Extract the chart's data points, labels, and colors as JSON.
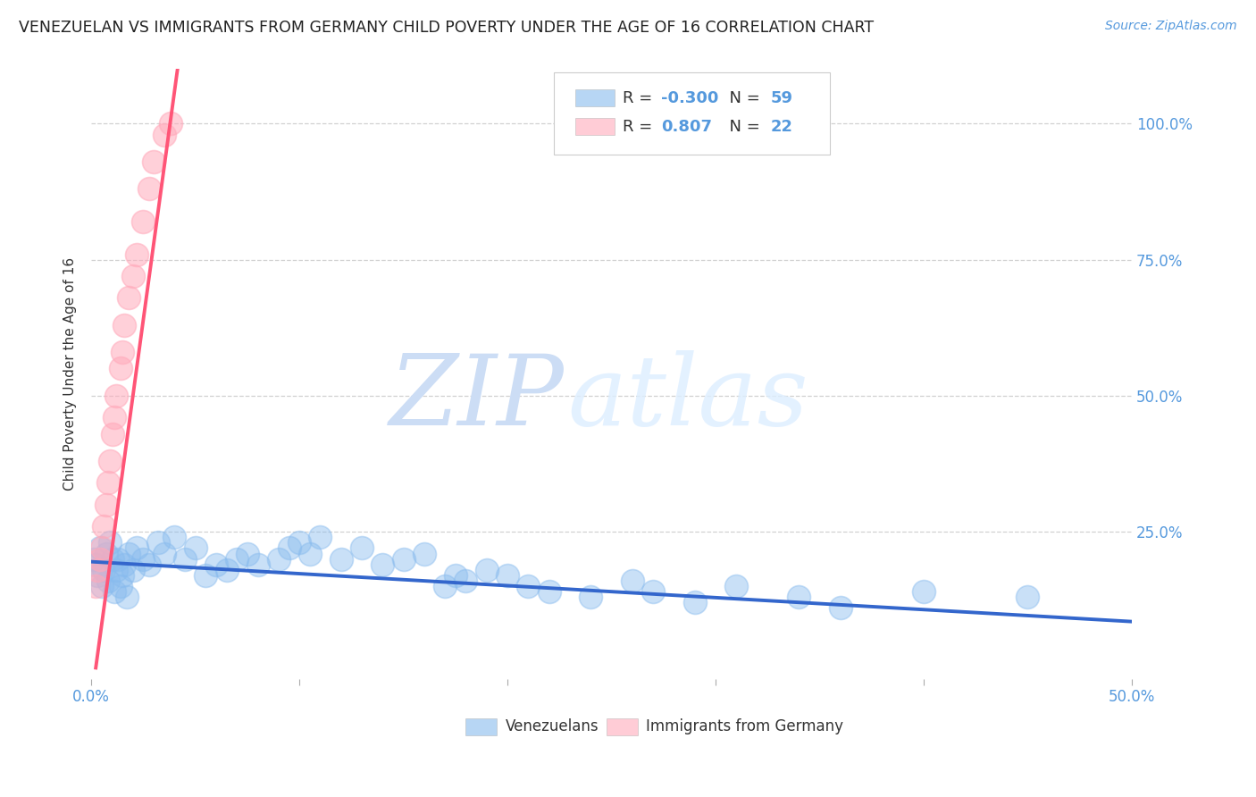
{
  "title": "VENEZUELAN VS IMMIGRANTS FROM GERMANY CHILD POVERTY UNDER THE AGE OF 16 CORRELATION CHART",
  "source": "Source: ZipAtlas.com",
  "ylabel": "Child Poverty Under the Age of 16",
  "blue_color": "#88BBEE",
  "pink_color": "#FFAABB",
  "blue_line_color": "#3366CC",
  "pink_line_color": "#FF5577",
  "background_color": "#FFFFFF",
  "xlim": [
    0.0,
    0.5
  ],
  "ylim": [
    -0.02,
    1.1
  ],
  "venezuelan_x": [
    0.001,
    0.002,
    0.003,
    0.004,
    0.005,
    0.006,
    0.007,
    0.008,
    0.009,
    0.01,
    0.011,
    0.012,
    0.013,
    0.014,
    0.015,
    0.016,
    0.017,
    0.018,
    0.02,
    0.022,
    0.025,
    0.028,
    0.032,
    0.035,
    0.04,
    0.045,
    0.05,
    0.055,
    0.06,
    0.065,
    0.07,
    0.075,
    0.08,
    0.09,
    0.095,
    0.1,
    0.105,
    0.11,
    0.12,
    0.13,
    0.14,
    0.15,
    0.16,
    0.17,
    0.175,
    0.18,
    0.19,
    0.2,
    0.21,
    0.22,
    0.24,
    0.26,
    0.27,
    0.29,
    0.31,
    0.34,
    0.36,
    0.4,
    0.45
  ],
  "venezuelan_y": [
    0.2,
    0.19,
    0.17,
    0.22,
    0.15,
    0.18,
    0.21,
    0.16,
    0.23,
    0.2,
    0.14,
    0.18,
    0.2,
    0.15,
    0.17,
    0.19,
    0.13,
    0.21,
    0.18,
    0.22,
    0.2,
    0.19,
    0.23,
    0.21,
    0.24,
    0.2,
    0.22,
    0.17,
    0.19,
    0.18,
    0.2,
    0.21,
    0.19,
    0.2,
    0.22,
    0.23,
    0.21,
    0.24,
    0.2,
    0.22,
    0.19,
    0.2,
    0.21,
    0.15,
    0.17,
    0.16,
    0.18,
    0.17,
    0.15,
    0.14,
    0.13,
    0.16,
    0.14,
    0.12,
    0.15,
    0.13,
    0.11,
    0.14,
    0.13
  ],
  "germany_x": [
    0.002,
    0.003,
    0.004,
    0.005,
    0.006,
    0.007,
    0.008,
    0.009,
    0.01,
    0.011,
    0.012,
    0.014,
    0.015,
    0.016,
    0.018,
    0.02,
    0.022,
    0.025,
    0.028,
    0.03,
    0.035,
    0.038
  ],
  "germany_y": [
    0.15,
    0.18,
    0.2,
    0.22,
    0.26,
    0.3,
    0.34,
    0.38,
    0.43,
    0.46,
    0.5,
    0.55,
    0.58,
    0.63,
    0.68,
    0.72,
    0.76,
    0.82,
    0.88,
    0.93,
    0.98,
    1.0
  ],
  "ven_slope": -0.22,
  "ven_intercept": 0.195,
  "ger_slope": 28.0,
  "ger_intercept": -0.06
}
